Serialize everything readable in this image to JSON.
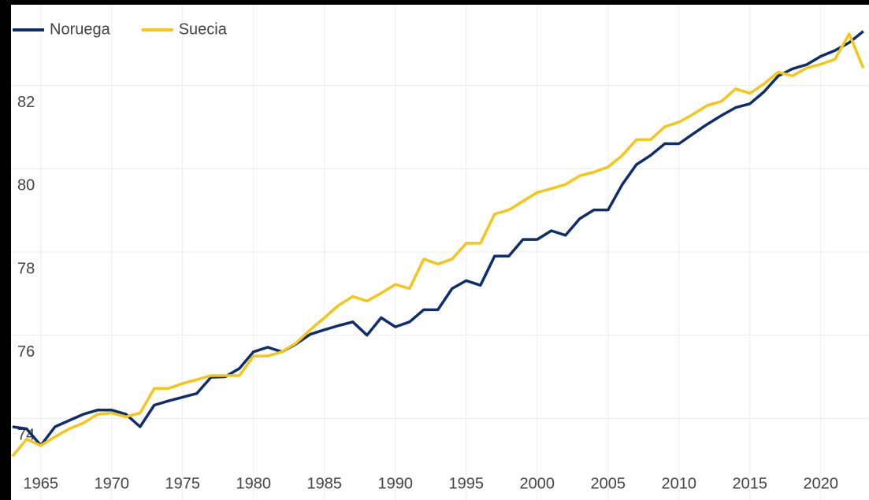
{
  "chart_data": {
    "type": "line",
    "x": [
      1963,
      1964,
      1965,
      1966,
      1967,
      1968,
      1969,
      1970,
      1971,
      1972,
      1973,
      1974,
      1975,
      1976,
      1977,
      1978,
      1979,
      1980,
      1981,
      1982,
      1983,
      1984,
      1985,
      1986,
      1987,
      1988,
      1989,
      1990,
      1991,
      1992,
      1993,
      1994,
      1995,
      1996,
      1997,
      1998,
      1999,
      2000,
      2001,
      2002,
      2003,
      2004,
      2005,
      2006,
      2007,
      2008,
      2009,
      2010,
      2011,
      2012,
      2013,
      2014,
      2015,
      2016,
      2017,
      2018,
      2019,
      2020,
      2021,
      2022,
      2023
    ],
    "series": [
      {
        "name": "Noruega",
        "color": "#0d2d6c",
        "values": [
          73.8,
          73.75,
          73.35,
          73.8,
          73.95,
          74.1,
          74.2,
          74.2,
          74.1,
          73.8,
          74.32,
          74.42,
          74.51,
          74.6,
          74.99,
          75.0,
          75.2,
          75.6,
          75.71,
          75.6,
          75.79,
          76.02,
          76.13,
          76.23,
          76.32,
          76.0,
          76.42,
          76.2,
          76.32,
          76.61,
          76.61,
          77.12,
          77.31,
          77.2,
          77.9,
          77.9,
          78.3,
          78.3,
          78.51,
          78.4,
          78.8,
          79.01,
          79.01,
          79.62,
          80.1,
          80.32,
          80.6,
          80.6,
          80.84,
          81.07,
          81.28,
          81.47,
          81.56,
          81.85,
          82.23,
          82.4,
          82.5,
          82.7,
          82.84,
          83.03,
          83.3
        ]
      },
      {
        "name": "Suecia",
        "color": "#f5c518",
        "values": [
          73.09,
          73.5,
          73.35,
          73.56,
          73.75,
          73.89,
          74.1,
          74.13,
          74.04,
          74.13,
          74.72,
          74.72,
          74.84,
          74.93,
          75.03,
          75.03,
          75.03,
          75.5,
          75.5,
          75.6,
          75.81,
          76.13,
          76.42,
          76.72,
          76.93,
          76.82,
          77.01,
          77.22,
          77.12,
          77.83,
          77.71,
          77.83,
          78.21,
          78.21,
          78.91,
          79.01,
          79.22,
          79.43,
          79.52,
          79.62,
          79.83,
          79.92,
          80.04,
          80.32,
          80.7,
          80.7,
          81.01,
          81.12,
          81.31,
          81.52,
          81.62,
          81.92,
          81.81,
          82.04,
          82.32,
          82.23,
          82.42,
          82.51,
          82.63,
          83.24,
          82.42
        ]
      }
    ],
    "xlim": [
      1962.9,
      2023.4
    ],
    "xticks": [
      1965,
      1970,
      1975,
      1980,
      1985,
      1990,
      1995,
      2000,
      2005,
      2010,
      2015,
      2020
    ],
    "ylim": [
      72.04,
      83.94
    ],
    "yticks": [
      74,
      76,
      78,
      80,
      82
    ],
    "grid": true,
    "legend": "top-left"
  }
}
